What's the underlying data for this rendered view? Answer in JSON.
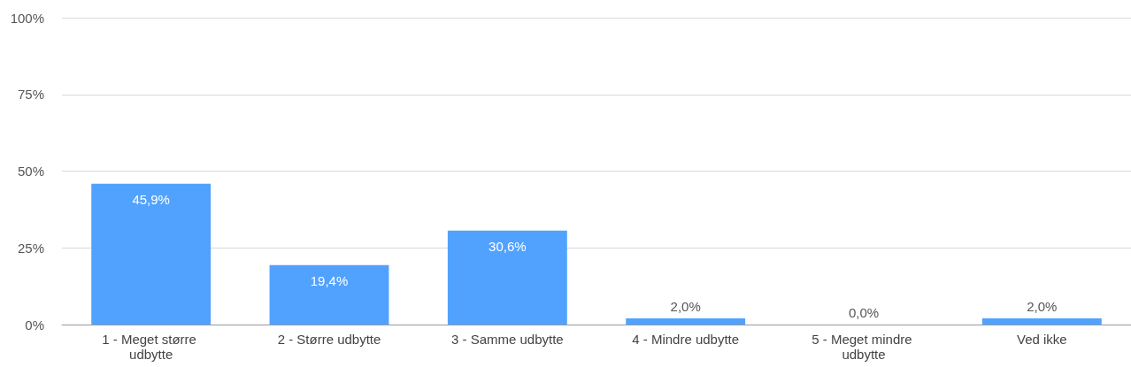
{
  "chart_data": {
    "type": "bar",
    "categories": [
      "1 - Meget større udbytte",
      "2 - Større udbytte",
      "3 - Samme udbytte",
      "4 - Mindre udbytte",
      "5 - Meget mindre udbytte",
      "Ved ikke"
    ],
    "values": [
      45.9,
      19.4,
      30.6,
      2.0,
      0.0,
      2.0
    ],
    "value_labels": [
      "45,9%",
      "19,4%",
      "30,6%",
      "2,0%",
      "0,0%",
      "2,0%"
    ],
    "color": "#51a2ff",
    "ylim": [
      0,
      100
    ],
    "yticks": [
      {
        "value": 0,
        "label": "0%"
      },
      {
        "value": 25,
        "label": "25%"
      },
      {
        "value": 50,
        "label": "50%"
      },
      {
        "value": 75,
        "label": "75%"
      },
      {
        "value": 100,
        "label": "100%"
      }
    ],
    "grid": true
  }
}
